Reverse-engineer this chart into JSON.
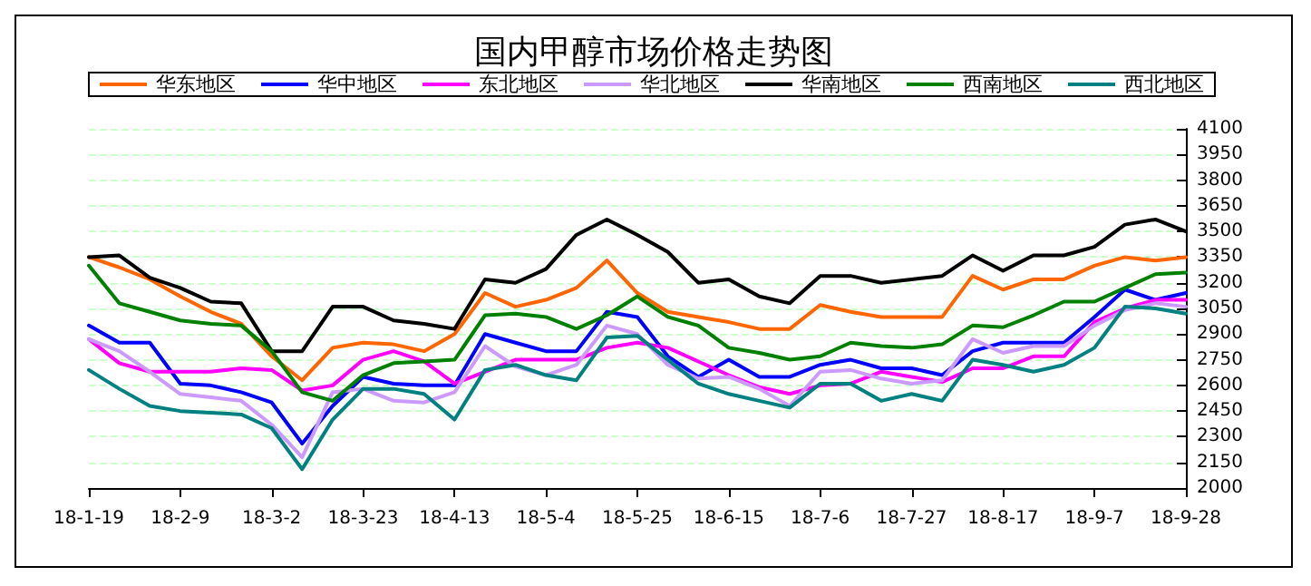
{
  "chart_data": {
    "type": "line",
    "title": "国内甲醇市场价格走势图",
    "x": [
      "--01-19",
      "--01-26",
      "--02-02",
      "--02-09",
      "--02-16",
      "--02-23",
      "--03-02",
      "--03-09",
      "--03-16",
      "--03-23",
      "--03-30",
      "--04-06",
      "--04-13",
      "--04-20",
      "--04-27",
      "--05-04",
      "--05-11",
      "--05-18",
      "--05-25",
      "--06-01",
      "--06-08",
      "--06-15",
      "--06-22",
      "--06-29",
      "--07-06",
      "--07-13",
      "--07-20",
      "--07-27",
      "--08-03",
      "--08-10",
      "--08-17",
      "--08-24",
      "--08-31",
      "--09-07",
      "--09-14",
      "--09-21",
      "--09-28"
    ],
    "series": [
      {
        "name": "华东地区",
        "color": "#ff6600",
        "values": [
          3350,
          3290,
          3220,
          3120,
          3030,
          2960,
          2770,
          2630,
          2820,
          2850,
          2840,
          2800,
          2900,
          3140,
          3060,
          3100,
          3170,
          3330,
          3140,
          3030,
          3000,
          2970,
          2930,
          2930,
          3070,
          3030,
          3000,
          3000,
          3000,
          3240,
          3160,
          3220,
          3220,
          3300,
          3350,
          3330,
          3350
        ]
      },
      {
        "name": "华中地区",
        "color": "#0000ff",
        "values": [
          2950,
          2850,
          2850,
          2610,
          2600,
          2560,
          2500,
          2260,
          2480,
          2650,
          2610,
          2600,
          2600,
          2900,
          2850,
          2800,
          2800,
          3030,
          3000,
          2770,
          2650,
          2750,
          2650,
          2650,
          2720,
          2750,
          2700,
          2700,
          2660,
          2800,
          2850,
          2850,
          2850,
          3000,
          3160,
          3100,
          3140
        ]
      },
      {
        "name": "东北地区",
        "color": "#ff00ff",
        "values": [
          2870,
          2730,
          2680,
          2680,
          2680,
          2700,
          2690,
          2570,
          2600,
          2750,
          2800,
          2740,
          2610,
          2680,
          2750,
          2750,
          2750,
          2820,
          2850,
          2820,
          2740,
          2660,
          2590,
          2550,
          2600,
          2610,
          2680,
          2650,
          2620,
          2700,
          2700,
          2770,
          2770,
          2970,
          3050,
          3100,
          3100
        ]
      },
      {
        "name": "华北地区",
        "color": "#cc99ff",
        "values": [
          2870,
          2800,
          2680,
          2550,
          2530,
          2510,
          2370,
          2180,
          2560,
          2580,
          2510,
          2500,
          2560,
          2830,
          2710,
          2660,
          2720,
          2950,
          2900,
          2720,
          2640,
          2650,
          2580,
          2480,
          2680,
          2690,
          2640,
          2610,
          2630,
          2870,
          2790,
          2830,
          2830,
          2950,
          3040,
          3080,
          3060
        ]
      },
      {
        "name": "华南地区",
        "color": "#000000",
        "values": [
          3350,
          3360,
          3230,
          3170,
          3090,
          3080,
          2800,
          2800,
          3060,
          3060,
          2980,
          2960,
          2930,
          3220,
          3200,
          3280,
          3480,
          3570,
          3480,
          3380,
          3200,
          3220,
          3120,
          3080,
          3240,
          3240,
          3200,
          3220,
          3240,
          3360,
          3270,
          3360,
          3360,
          3410,
          3540,
          3570,
          3500
        ]
      },
      {
        "name": "西南地区",
        "color": "#008000",
        "values": [
          3300,
          3080,
          3030,
          2980,
          2960,
          2950,
          2800,
          2560,
          2510,
          2660,
          2730,
          2740,
          2750,
          3010,
          3020,
          3000,
          2930,
          3010,
          3120,
          3000,
          2950,
          2820,
          2790,
          2750,
          2770,
          2850,
          2830,
          2820,
          2840,
          2950,
          2940,
          3010,
          3090,
          3090,
          3170,
          3250,
          3260
        ]
      },
      {
        "name": "西北地区",
        "color": "#008080",
        "values": [
          2690,
          2580,
          2480,
          2450,
          2440,
          2430,
          2350,
          2110,
          2400,
          2580,
          2580,
          2550,
          2400,
          2690,
          2720,
          2660,
          2630,
          2880,
          2890,
          2750,
          2610,
          2550,
          2510,
          2470,
          2610,
          2610,
          2510,
          2550,
          2510,
          2750,
          2720,
          2680,
          2720,
          2820,
          3060,
          3050,
          3020
        ]
      }
    ],
    "xlim": [
      "--01-19",
      "--09-28"
    ],
    "xticks": [
      {
        "value": "--01-19",
        "label": "18-1-19"
      },
      {
        "value": "--02-09",
        "label": "18-2-9"
      },
      {
        "value": "--03-02",
        "label": "18-3-2"
      },
      {
        "value": "--03-23",
        "label": "18-3-23"
      },
      {
        "value": "--04-13",
        "label": "18-4-13"
      },
      {
        "value": "--05-04",
        "label": "18-5-4"
      },
      {
        "value": "--05-25",
        "label": "18-5-25"
      },
      {
        "value": "--06-15",
        "label": "18-6-15"
      },
      {
        "value": "--07-06",
        "label": "18-7-6"
      },
      {
        "value": "--07-27",
        "label": "18-7-27"
      },
      {
        "value": "--08-17",
        "label": "18-8-17"
      },
      {
        "value": "--09-07",
        "label": "18-9-7"
      },
      {
        "value": "--09-28",
        "label": "18-9-28"
      }
    ],
    "ylim": [
      2000,
      4100
    ],
    "yticks": [
      2000,
      2150,
      2300,
      2450,
      2600,
      2750,
      2900,
      3050,
      3200,
      3350,
      3500,
      3650,
      3800,
      3950,
      4100
    ],
    "grid": "y",
    "legend": "top",
    "marker": "none",
    "line_style": "solid"
  }
}
